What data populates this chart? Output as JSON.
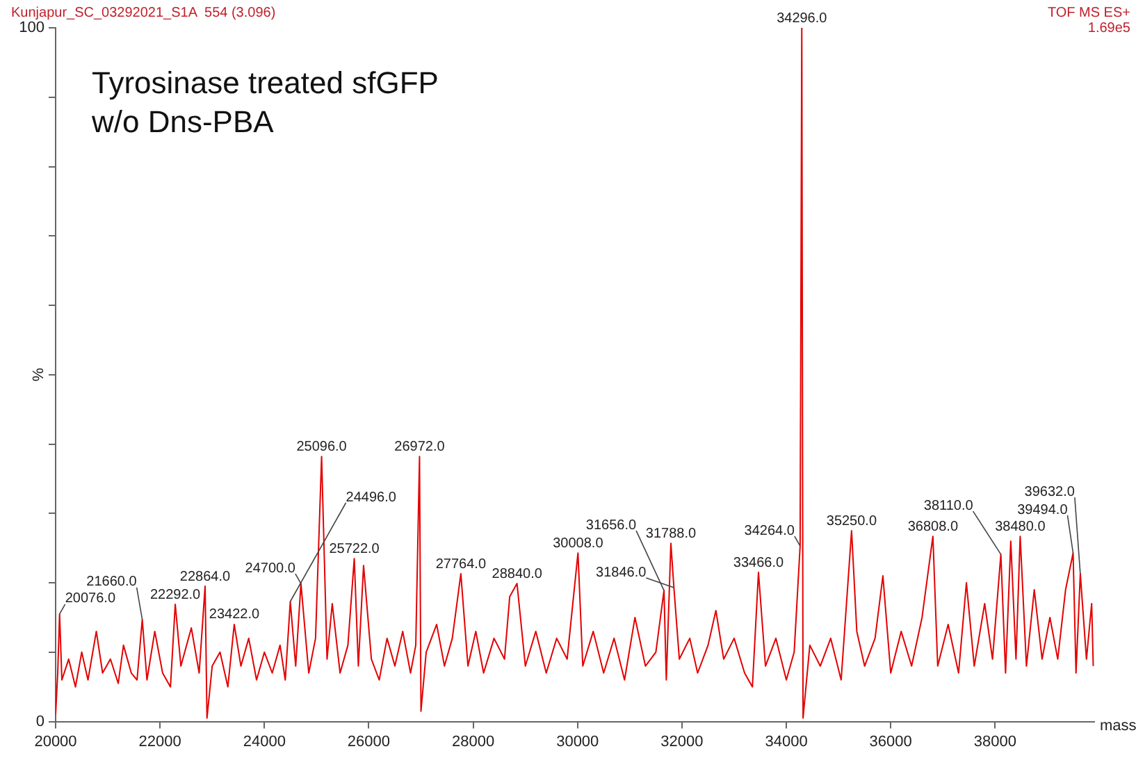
{
  "chart_data": {
    "type": "line",
    "title": "Tyrosinase treated sfGFP\nw/o Dns-PBA",
    "xlabel": "mass",
    "ylabel": "%",
    "annotations": [
      "Kunjapur_SC_03292021_S1A  554 (3.096)",
      "TOF MS ES+",
      "1.69e5",
      {
        "text": "20076.0",
        "x": 20076,
        "y": 15.5
      },
      {
        "text": "21660.0",
        "x": 21660,
        "y": 14.7
      },
      {
        "text": "22292.0",
        "x": 22292,
        "y": 16.9
      },
      {
        "text": "22864.0",
        "x": 22864,
        "y": 19.5
      },
      {
        "text": "23422.0",
        "x": 23422,
        "y": 14
      },
      {
        "text": "24496.0",
        "x": 24496,
        "y": 17.3
      },
      {
        "text": "24700.0",
        "x": 24700,
        "y": 19.9
      },
      {
        "text": "25096.0",
        "x": 25096,
        "y": 38.2
      },
      {
        "text": "25722.0",
        "x": 25722,
        "y": 23.5
      },
      {
        "text": "26972.0",
        "x": 26972,
        "y": 38.2
      },
      {
        "text": "27764.0",
        "x": 27764,
        "y": 21.3
      },
      {
        "text": "28840.0",
        "x": 28840,
        "y": 19.9
      },
      {
        "text": "30008.0",
        "x": 30008,
        "y": 24.3
      },
      {
        "text": "31656.0",
        "x": 31656,
        "y": 18.9
      },
      {
        "text": "31788.0",
        "x": 31788,
        "y": 25.7
      },
      {
        "text": "31846.0",
        "x": 31846,
        "y": 19.3
      },
      {
        "text": "33466.0",
        "x": 33466,
        "y": 21.5
      },
      {
        "text": "34264.0",
        "x": 34264,
        "y": 25.3
      },
      {
        "text": "34296.0",
        "x": 34296,
        "y": 100
      },
      {
        "text": "35250.0",
        "x": 35250,
        "y": 27.5
      },
      {
        "text": "36808.0",
        "x": 36808,
        "y": 26.7
      },
      {
        "text": "38110.0",
        "x": 38110,
        "y": 24.1
      },
      {
        "text": "38480.0",
        "x": 38480,
        "y": 26.7
      },
      {
        "text": "39494.0",
        "x": 39494,
        "y": 24.3
      },
      {
        "text": "39632.0",
        "x": 39632,
        "y": 21.3
      }
    ],
    "x": [
      20000,
      20040,
      20076,
      20120,
      20250,
      20380,
      20500,
      20620,
      20780,
      20900,
      21050,
      21200,
      21300,
      21450,
      21560,
      21660,
      21750,
      21900,
      22050,
      22200,
      22292,
      22400,
      22600,
      22750,
      22864,
      22900,
      23000,
      23150,
      23300,
      23422,
      23550,
      23700,
      23850,
      24000,
      24150,
      24300,
      24400,
      24496,
      24600,
      24700,
      24850,
      24980,
      25096,
      25200,
      25300,
      25450,
      25600,
      25722,
      25800,
      25900,
      26050,
      26200,
      26350,
      26500,
      26650,
      26800,
      26900,
      26972,
      27000,
      27100,
      27300,
      27450,
      27600,
      27764,
      27900,
      28050,
      28200,
      28400,
      28600,
      28700,
      28840,
      29000,
      29200,
      29400,
      29600,
      29800,
      30008,
      30100,
      30300,
      30500,
      30700,
      30900,
      31100,
      31300,
      31500,
      31656,
      31700,
      31788,
      31846,
      31950,
      32150,
      32300,
      32500,
      32650,
      32800,
      33000,
      33200,
      33350,
      33466,
      33600,
      33800,
      34000,
      34150,
      34264,
      34296,
      34320,
      34450,
      34650,
      34850,
      35050,
      35250,
      35350,
      35500,
      35700,
      35850,
      36000,
      36200,
      36400,
      36600,
      36808,
      36900,
      37100,
      37300,
      37450,
      37600,
      37800,
      37950,
      38110,
      38200,
      38300,
      38400,
      38480,
      38600,
      38750,
      38900,
      39050,
      39200,
      39350,
      39494,
      39550,
      39632,
      39750,
      39850,
      39880
    ],
    "series": [
      {
        "color": "#e30000",
        "values": [
          1,
          7,
          15.5,
          6,
          9,
          5,
          10,
          6,
          13,
          7,
          9,
          5.5,
          11,
          7,
          6,
          14.7,
          6,
          13,
          7,
          5,
          16.9,
          8,
          13.5,
          7,
          19.5,
          0.5,
          8,
          10,
          5,
          14,
          8,
          12,
          6,
          10,
          7,
          11,
          6,
          17.3,
          8,
          19.9,
          7,
          12,
          38.2,
          9,
          17,
          7,
          11,
          23.5,
          8,
          22.5,
          9,
          6,
          12,
          8,
          13,
          7,
          11,
          38.2,
          1.5,
          10,
          14,
          8,
          12,
          21.3,
          8,
          13,
          7,
          12,
          9,
          18,
          19.9,
          8,
          13,
          7,
          12,
          9,
          24.3,
          8,
          13,
          7,
          12,
          6,
          15,
          8,
          10,
          18.9,
          6,
          25.7,
          19.3,
          9,
          12,
          7,
          11,
          16,
          9,
          12,
          7,
          5,
          21.5,
          8,
          12,
          6,
          10,
          25.3,
          100,
          0.5,
          11,
          8,
          12,
          6,
          27.5,
          13,
          8,
          12,
          21,
          7,
          13,
          8,
          15,
          26.7,
          8,
          14,
          7,
          20,
          8,
          17,
          9,
          24.1,
          7,
          26,
          9,
          26.7,
          8,
          19,
          9,
          15,
          9,
          19,
          24.3,
          7,
          21.3,
          9,
          17,
          8
        ]
      }
    ],
    "xlim": [
      20000,
      39900
    ],
    "xticks": [
      20000,
      22000,
      24000,
      26000,
      28000,
      30000,
      32000,
      34000,
      36000,
      38000
    ],
    "ylim": [
      0,
      100
    ],
    "yticks": [
      0,
      {
        "value": 10,
        "label": null
      },
      {
        "value": 20,
        "label": null
      },
      {
        "value": 30,
        "label": null
      },
      {
        "value": 40,
        "label": null
      },
      {
        "value": 50,
        "label": null
      },
      {
        "value": 60,
        "label": null
      },
      {
        "value": 70,
        "label": null
      },
      {
        "value": 80,
        "label": null
      },
      {
        "value": 90,
        "label": null
      },
      100
    ],
    "grid": false,
    "legend": false,
    "marker": "none",
    "line_style": "solid"
  }
}
